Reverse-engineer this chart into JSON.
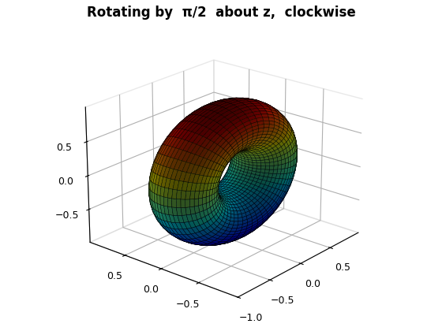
{
  "title": "Rotating by  π/2  about z,  clockwise",
  "R": 0.65,
  "r": 0.35,
  "n_u": 50,
  "n_v": 50,
  "elev": 22,
  "azim": -140,
  "cmap": "jet",
  "edgecolor": "black",
  "linewidth": 0.3,
  "alpha": 1.0,
  "xlim": [
    -1,
    1
  ],
  "ylim": [
    -1,
    1
  ],
  "zlim": [
    -1,
    1
  ],
  "xticks": [
    -1,
    -0.5,
    0,
    0.5
  ],
  "yticks": [
    -0.5,
    0,
    0.5
  ],
  "zticks": [
    -0.5,
    0,
    0.5
  ],
  "title_fontsize": 12,
  "background_color": "#ffffff"
}
